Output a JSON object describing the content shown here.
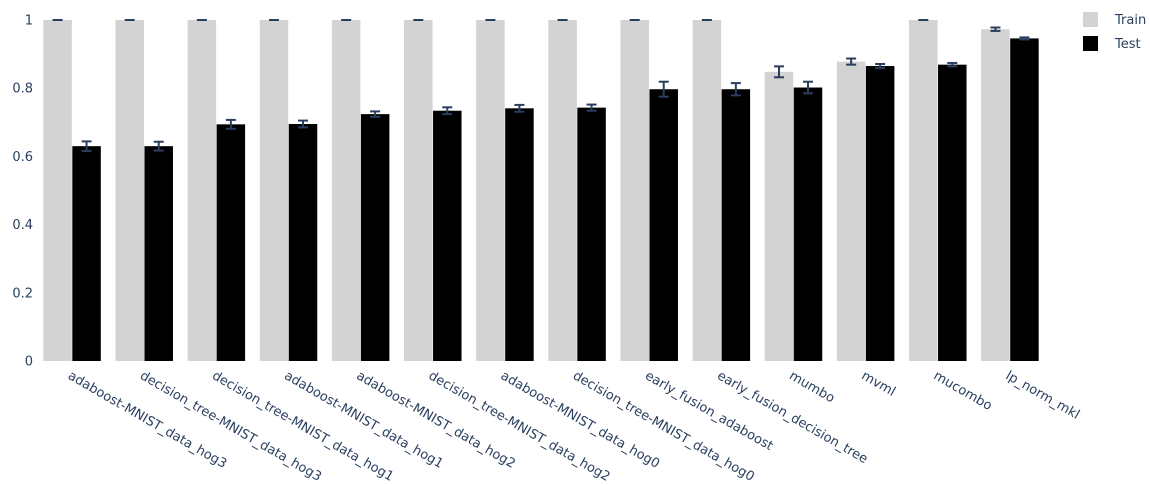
{
  "chart_data": {
    "type": "bar",
    "categories": [
      "adaboost-MNIST_data_hog3",
      "decision_tree-MNIST_data_hog3",
      "decision_tree-MNIST_data_hog1",
      "adaboost-MNIST_data_hog1",
      "adaboost-MNIST_data_hog2",
      "decision_tree-MNIST_data_hog2",
      "adaboost-MNIST_data_hog0",
      "decision_tree-MNIST_data_hog0",
      "early_fusion_adaboost",
      "early_fusion_decision_tree",
      "mumbo",
      "mvml",
      "mucombo",
      "lp_norm_mkl"
    ],
    "series": [
      {
        "name": "Train",
        "color": "#d3d3d3",
        "values": [
          1,
          1,
          1,
          1,
          1,
          1,
          1,
          1,
          1,
          1,
          0.848,
          0.878,
          1,
          0.973
        ],
        "errors": [
          0,
          0,
          0,
          0,
          0,
          0,
          0,
          0,
          0,
          0,
          0.016,
          0.009,
          0,
          0.005
        ]
      },
      {
        "name": "Test",
        "color": "#000000",
        "values": [
          0.63,
          0.63,
          0.694,
          0.695,
          0.724,
          0.734,
          0.741,
          0.743,
          0.797,
          0.797,
          0.802,
          0.865,
          0.869,
          0.946
        ],
        "errors": [
          0.014,
          0.013,
          0.013,
          0.01,
          0.008,
          0.01,
          0.01,
          0.009,
          0.022,
          0.018,
          0.017,
          0.006,
          0.005,
          0.003
        ]
      }
    ],
    "error_bar_color": "#2a3f5f",
    "ylim": [
      0,
      1
    ],
    "yticks": [
      0,
      0.2,
      0.4,
      0.6,
      0.8,
      1
    ],
    "ytick_labels": [
      "0",
      "0.2",
      "0.4",
      "0.6",
      "0.8",
      "1"
    ],
    "grid": false,
    "legend_position": "top-right",
    "title": "",
    "xlabel": "",
    "ylabel": ""
  }
}
